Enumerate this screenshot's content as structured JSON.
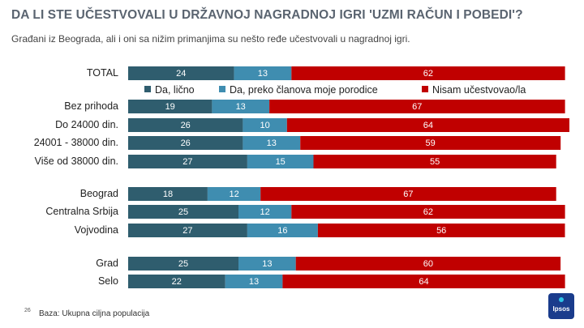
{
  "title": "DA LI STE UČESTVOVALI U DRŽAVNOJ NAGRADNOJ IGRI 'UZMI RAČUN I POBEDI'?",
  "subtitle": "Građani iz Beograda, ali i oni sa nižim primanjima su nešto ređe učestvovali u nagradnoj igri.",
  "page_number": "26",
  "footer": "Baza: Ukupna ciljna populacija",
  "logo_text": "Ipsos",
  "colors": {
    "dark": "#2f5d6e",
    "mid": "#3f8db0",
    "red": "#c00000"
  },
  "legend": [
    {
      "label": "Da, lično",
      "color": "#2f5d6e"
    },
    {
      "label": "Da, preko članova moje porodice",
      "color": "#3f8db0"
    },
    {
      "label": "Nisam učestvovao/la",
      "color": "#c00000"
    }
  ],
  "chart_data": {
    "type": "bar",
    "orientation": "horizontal",
    "stacked": true,
    "unit": "%",
    "categories": [
      "TOTAL",
      "Bez prihoda",
      "Do 24000 din.",
      "24001 - 38000 din.",
      "Više od 38000 din.",
      "Beograd",
      "Centralna Srbija",
      "Vojvodina",
      "Grad",
      "Selo"
    ],
    "series": [
      {
        "name": "Da, lično",
        "values": [
          24,
          19,
          26,
          26,
          27,
          18,
          25,
          27,
          25,
          22
        ]
      },
      {
        "name": "Da, preko članova moje porodice",
        "values": [
          13,
          13,
          10,
          13,
          15,
          12,
          12,
          16,
          13,
          13
        ]
      },
      {
        "name": "Nisam učestvovao/la",
        "values": [
          62,
          67,
          64,
          59,
          55,
          67,
          62,
          56,
          60,
          64
        ]
      }
    ]
  }
}
